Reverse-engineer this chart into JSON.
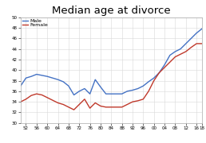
{
  "title": "Median age at divorce",
  "male_years": [
    1950,
    1952,
    1954,
    1956,
    1958,
    1960,
    1962,
    1964,
    1966,
    1968,
    1970,
    1972,
    1974,
    1976,
    1978,
    1980,
    1982,
    1984,
    1986,
    1988,
    1990,
    1992,
    1994,
    1996,
    1998,
    2000,
    2002,
    2004,
    2006,
    2008,
    2010,
    2012,
    2014,
    2016,
    2018
  ],
  "male_vals": [
    37.0,
    38.5,
    38.8,
    39.2,
    39.0,
    38.8,
    38.5,
    38.2,
    37.8,
    37.0,
    35.3,
    36.0,
    36.5,
    35.5,
    38.2,
    36.8,
    35.5,
    35.5,
    35.5,
    35.5,
    36.0,
    36.2,
    36.5,
    37.0,
    37.8,
    38.5,
    39.5,
    41.0,
    42.8,
    43.5,
    44.0,
    45.0,
    46.0,
    47.0,
    47.8
  ],
  "female_vals": [
    34.0,
    34.5,
    35.2,
    35.5,
    35.3,
    34.8,
    34.3,
    33.8,
    33.5,
    33.0,
    32.5,
    33.5,
    34.5,
    32.8,
    33.8,
    33.2,
    33.0,
    33.0,
    33.0,
    33.0,
    33.5,
    34.0,
    34.2,
    34.5,
    36.0,
    38.0,
    39.5,
    40.5,
    41.5,
    42.5,
    43.0,
    43.5,
    44.3,
    45.0,
    45.0
  ],
  "male_color": "#4472c4",
  "female_color": "#c0392b",
  "ylim": [
    30,
    50
  ],
  "yticks": [
    30,
    32,
    34,
    36,
    38,
    40,
    42,
    44,
    46,
    48,
    50
  ],
  "xlim": [
    1950,
    2018
  ],
  "xtick_years": [
    1952,
    1956,
    1960,
    1964,
    1968,
    1972,
    1976,
    1980,
    1984,
    1988,
    1992,
    1996,
    2000,
    2004,
    2008,
    2012,
    2016,
    2018
  ],
  "background_color": "#ffffff",
  "grid_color": "#d8d8d8",
  "title_fontsize": 9.5,
  "tick_fontsize": 4.0,
  "legend_fontsize": 4.5,
  "line_width": 1.0
}
